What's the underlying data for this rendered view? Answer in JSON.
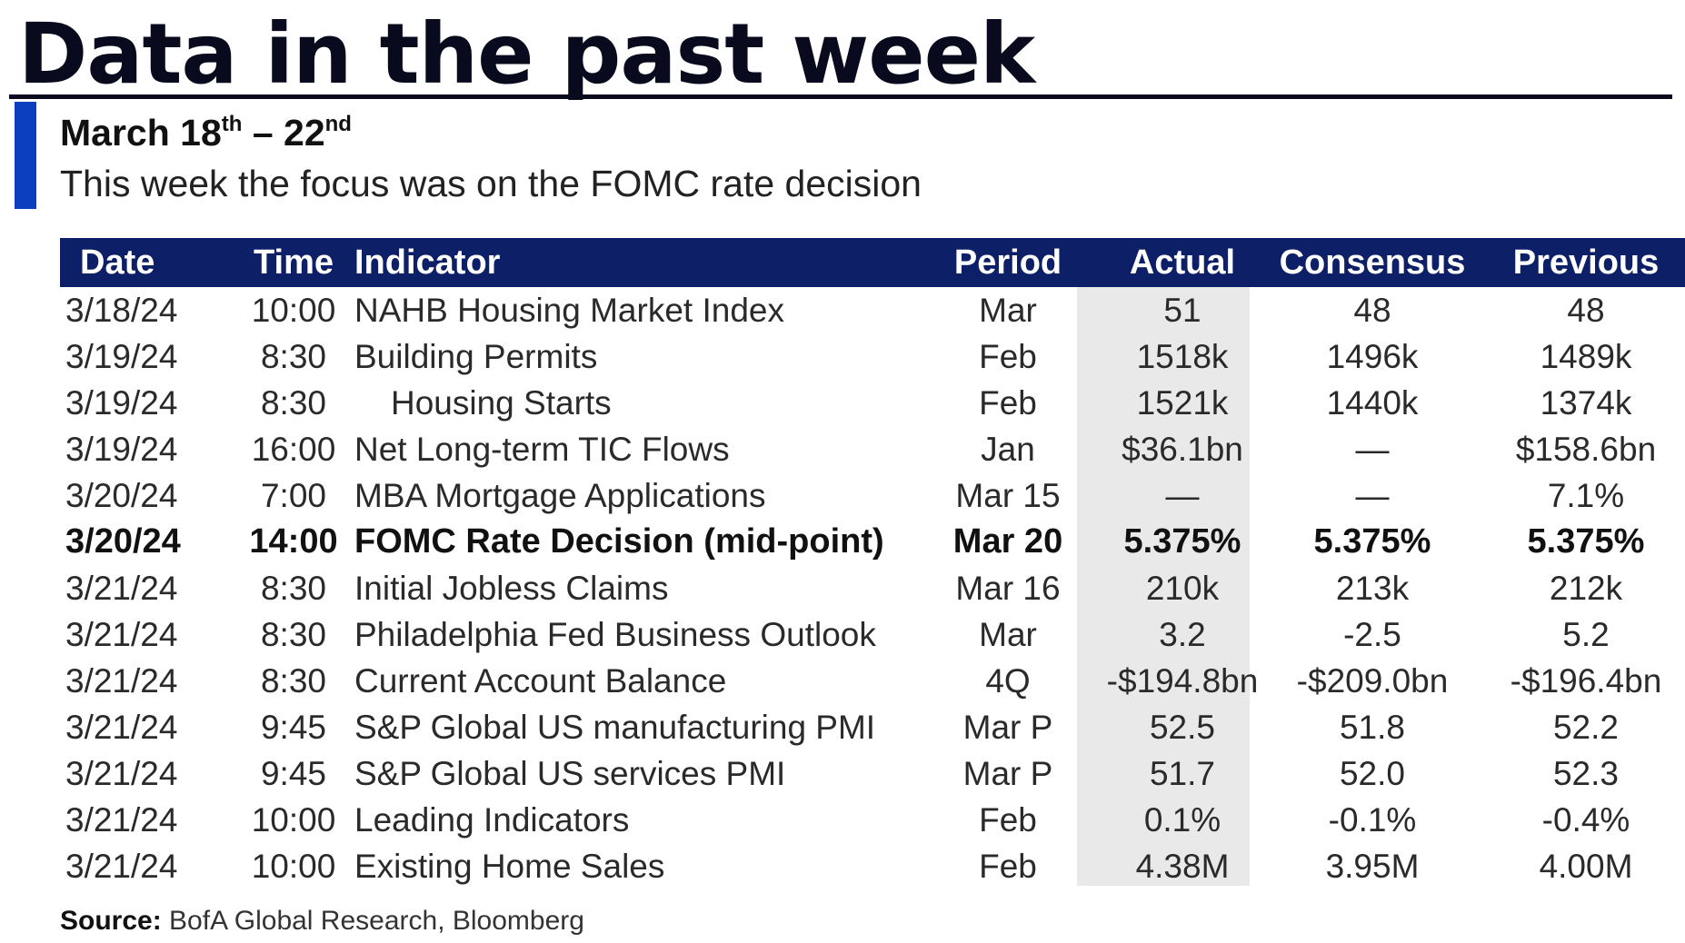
{
  "title": "Data in the past week",
  "date_range": {
    "start": "March 18",
    "start_suffix": "th",
    "separator": " – ",
    "end": "22",
    "end_suffix": "nd"
  },
  "subtitle": "This week the focus was on the FOMC rate decision",
  "table": {
    "headers": {
      "date": "Date",
      "time": "Time",
      "indicator": "Indicator",
      "period": "Period",
      "actual": "Actual",
      "consensus": "Consensus",
      "previous": "Previous"
    },
    "rows": [
      {
        "date": "3/18/24",
        "time": "10:00",
        "indicator": "NAHB Housing Market Index",
        "period": "Mar",
        "actual": "51",
        "consensus": "48",
        "previous": "48",
        "bold": false,
        "indent": false
      },
      {
        "date": "3/19/24",
        "time": "8:30",
        "indicator": "Building Permits",
        "period": "Feb",
        "actual": "1518k",
        "consensus": "1496k",
        "previous": "1489k",
        "bold": false,
        "indent": false
      },
      {
        "date": "3/19/24",
        "time": "8:30",
        "indicator": "Housing Starts",
        "period": "Feb",
        "actual": "1521k",
        "consensus": "1440k",
        "previous": "1374k",
        "bold": false,
        "indent": true
      },
      {
        "date": "3/19/24",
        "time": "16:00",
        "indicator": "Net Long-term TIC Flows",
        "period": "Jan",
        "actual": "$36.1bn",
        "consensus": "—",
        "previous": "$158.6bn",
        "bold": false,
        "indent": false
      },
      {
        "date": "3/20/24",
        "time": "7:00",
        "indicator": "MBA Mortgage Applications",
        "period": "Mar 15",
        "actual": "—",
        "consensus": "—",
        "previous": "7.1%",
        "bold": false,
        "indent": false
      },
      {
        "date": "3/20/24",
        "time": "14:00",
        "indicator": "FOMC Rate Decision (mid-point)",
        "period": "Mar 20",
        "actual": "5.375%",
        "consensus": "5.375%",
        "previous": "5.375%",
        "bold": true,
        "indent": false
      },
      {
        "date": "3/21/24",
        "time": "8:30",
        "indicator": "Initial Jobless Claims",
        "period": "Mar 16",
        "actual": "210k",
        "consensus": "213k",
        "previous": "212k",
        "bold": false,
        "indent": false
      },
      {
        "date": "3/21/24",
        "time": "8:30",
        "indicator": "Philadelphia Fed Business Outlook",
        "period": "Mar",
        "actual": "3.2",
        "consensus": "-2.5",
        "previous": "5.2",
        "bold": false,
        "indent": false
      },
      {
        "date": "3/21/24",
        "time": "8:30",
        "indicator": "Current Account Balance",
        "period": "4Q",
        "actual": "-$194.8bn",
        "consensus": "-$209.0bn",
        "previous": "-$196.4bn",
        "bold": false,
        "indent": false
      },
      {
        "date": "3/21/24",
        "time": "9:45",
        "indicator": "S&P Global US manufacturing PMI",
        "period": "Mar P",
        "actual": "52.5",
        "consensus": "51.8",
        "previous": "52.2",
        "bold": false,
        "indent": false
      },
      {
        "date": "3/21/24",
        "time": "9:45",
        "indicator": "S&P Global US services PMI",
        "period": "Mar P",
        "actual": "51.7",
        "consensus": "52.0",
        "previous": "52.3",
        "bold": false,
        "indent": false
      },
      {
        "date": "3/21/24",
        "time": "10:00",
        "indicator": "Leading Indicators",
        "period": "Feb",
        "actual": "0.1%",
        "consensus": "-0.1%",
        "previous": "-0.4%",
        "bold": false,
        "indent": false
      },
      {
        "date": "3/21/24",
        "time": "10:00",
        "indicator": "Existing Home Sales",
        "period": "Feb",
        "actual": "4.38M",
        "consensus": "3.95M",
        "previous": "4.00M",
        "bold": false,
        "indent": false
      }
    ]
  },
  "source": {
    "label": "Source:",
    "text": " BofA Global Research, Bloomberg"
  },
  "colors": {
    "header_background": "#0d1f66",
    "accent_bar": "#0b3fbf",
    "actual_column_shading": "#e9e9e9"
  }
}
